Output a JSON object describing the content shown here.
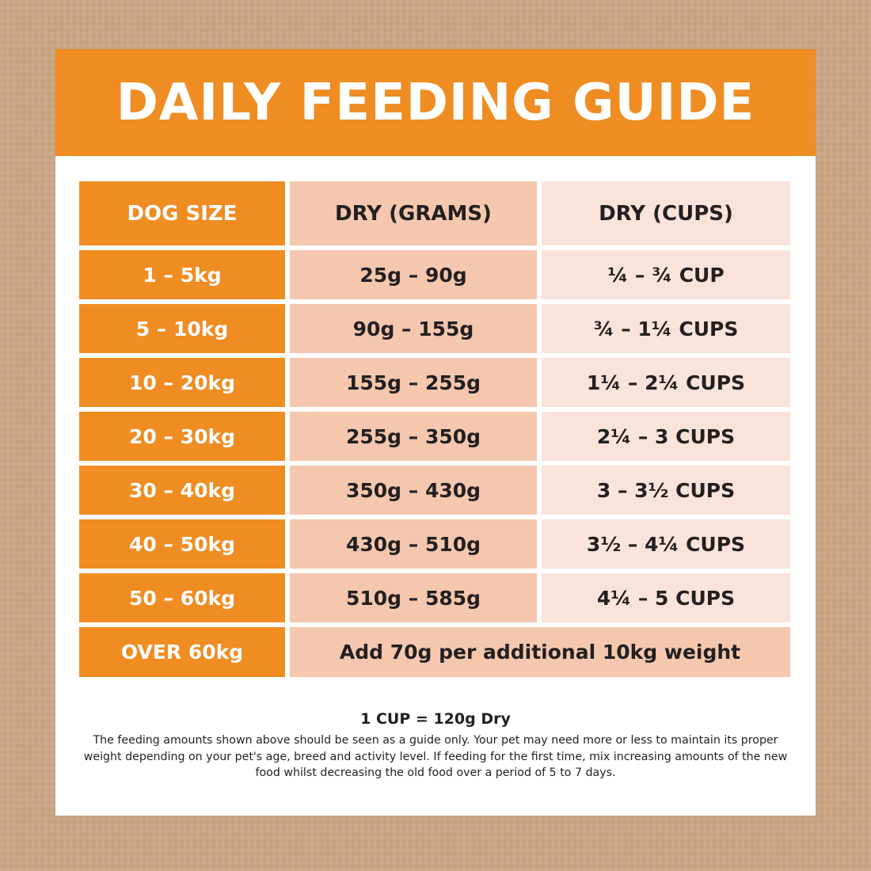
{
  "title": "DAILY FEEDING GUIDE",
  "table": {
    "headers": [
      "DOG SIZE",
      "DRY (GRAMS)",
      "DRY (CUPS)"
    ],
    "rows": [
      {
        "size": "1 – 5kg",
        "grams": "25g – 90g",
        "cups": "¼ – ¾ CUP"
      },
      {
        "size": "5 – 10kg",
        "grams": "90g – 155g",
        "cups": "¾ – 1¼ CUPS"
      },
      {
        "size": "10 – 20kg",
        "grams": "155g – 255g",
        "cups": "1¼ – 2¼ CUPS"
      },
      {
        "size": "20 – 30kg",
        "grams": "255g – 350g",
        "cups": "2¼ – 3 CUPS"
      },
      {
        "size": "30 – 40kg",
        "grams": "350g – 430g",
        "cups": "3 – 3½ CUPS"
      },
      {
        "size": "40 – 50kg",
        "grams": "430g – 510g",
        "cups": "3½ – 4¼ CUPS"
      },
      {
        "size": "50 – 60kg",
        "grams": "510g – 585g",
        "cups": "4¼ – 5 CUPS"
      }
    ],
    "last_row": {
      "size": "OVER 60kg",
      "note": "Add 70g per additional 10kg weight"
    }
  },
  "footer": {
    "cup_conversion": "1 CUP = 120g Dry",
    "disclaimer": "The feeding amounts shown above should be seen as a guide only. Your pet may need more or less to maintain its proper weight depending on your pet's age, breed and activity level. If feeding for the first time, mix increasing amounts of the new food whilst decreasing the old food over a period of 5 to 7 days."
  },
  "colors": {
    "orange": "#ef8c22",
    "peach": "#f4c7ae",
    "light_peach": "#f9e3da",
    "background": "#c9a584"
  }
}
